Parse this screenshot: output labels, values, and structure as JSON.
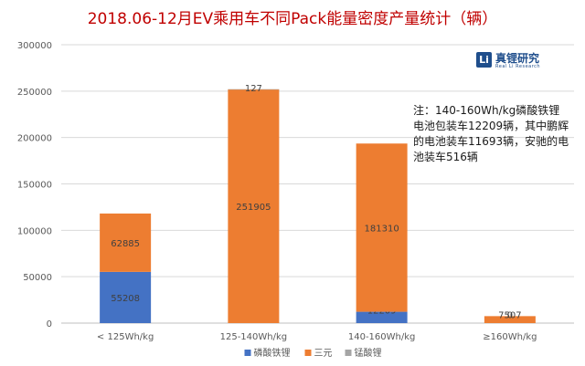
{
  "chart_data": {
    "type": "bar",
    "stacked": true,
    "title": "2018.06-12月EV乘用车不同Pack能量密度产量统计（辆）",
    "categories": [
      "< 125Wh/kg",
      "125-140Wh/kg",
      "140-160Wh/kg",
      "≥160Wh/kg"
    ],
    "series": [
      {
        "name": "磷酸铁锂",
        "color": "#4472c4",
        "values": [
          55208,
          0,
          12209,
          0
        ],
        "labels": [
          "55208",
          "",
          "12209",
          ""
        ]
      },
      {
        "name": "三元",
        "color": "#ed7d31",
        "values": [
          62885,
          251905,
          181310,
          7507
        ],
        "labels": [
          "62885",
          "251905",
          "181310",
          "7507"
        ]
      },
      {
        "name": "锰酸锂",
        "color": "#a5a5a5",
        "values": [
          0,
          127,
          0,
          0
        ],
        "labels": [
          "",
          "127",
          "",
          "0"
        ]
      }
    ],
    "yticks": [
      "0",
      "50000",
      "100000",
      "150000",
      "200000",
      "250000",
      "300000"
    ],
    "ylim": [
      0,
      300000
    ],
    "grid": true,
    "legend": "bottom",
    "annotation": "注：140-160Wh/kg磷酸铁锂电池包装车12209辆，其中鹏辉的电池装车11693辆，安驰的电池装车516辆"
  },
  "logo": {
    "mark": "Li",
    "name": "真锂研究",
    "sub": "Real Li Research"
  }
}
